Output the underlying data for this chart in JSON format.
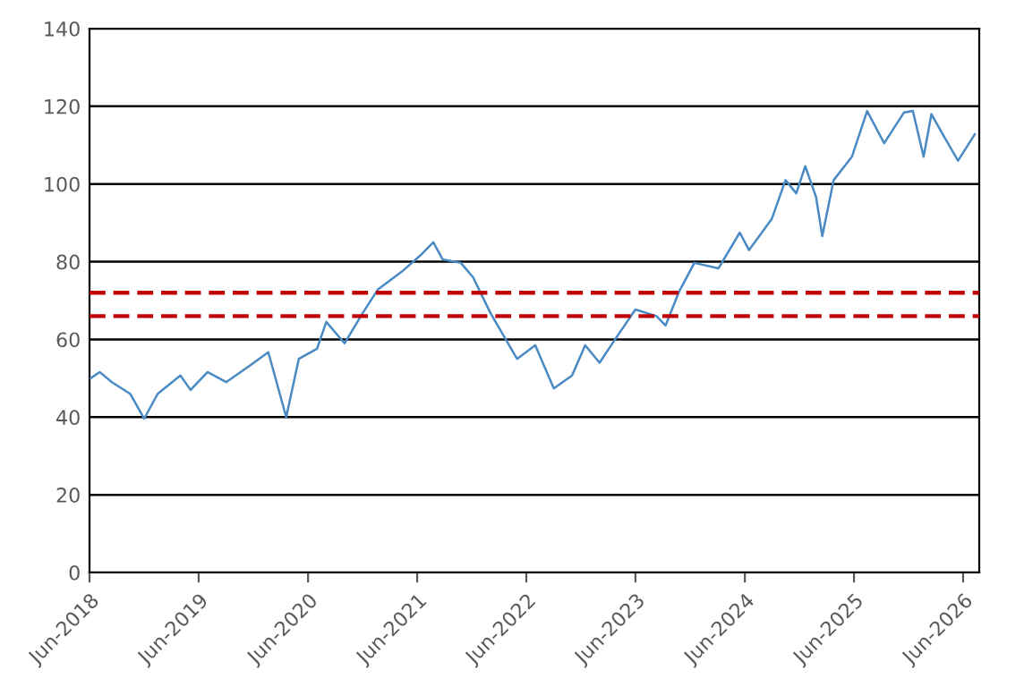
{
  "chart_data": {
    "type": "line",
    "x": [
      "2018-06-05",
      "2018-07-05",
      "2018-08-15",
      "2018-10-15",
      "2018-12-01",
      "2019-01-15",
      "2019-04-01",
      "2019-05-05",
      "2019-07-01",
      "2019-09-01",
      "2019-11-15",
      "2020-01-20",
      "2020-03-20",
      "2020-05-01",
      "2020-07-01",
      "2020-08-01",
      "2020-10-01",
      "2020-12-01",
      "2021-01-20",
      "2021-04-10",
      "2021-06-10",
      "2021-07-25",
      "2021-08-25",
      "2021-10-25",
      "2021-12-05",
      "2022-02-01",
      "2022-05-01",
      "2022-07-01",
      "2022-09-01",
      "2022-11-01",
      "2022-12-15",
      "2023-02-01",
      "2023-03-25",
      "2023-06-01",
      "2023-08-10",
      "2023-09-10",
      "2023-10-25",
      "2023-12-15",
      "2024-03-05",
      "2024-05-15",
      "2024-06-15",
      "2024-08-30",
      "2024-10-15",
      "2024-11-20",
      "2024-12-20",
      "2025-01-25",
      "2025-02-15",
      "2025-03-25",
      "2025-05-25",
      "2025-07-15",
      "2025-09-10",
      "2025-11-15",
      "2025-12-15",
      "2026-01-20",
      "2026-02-15",
      "2026-03-25",
      "2026-05-15",
      "2026-07-10"
    ],
    "series": [
      {
        "color": "#4a8ac4",
        "values": [
          50,
          51.6,
          49,
          46,
          39.6,
          46,
          50.7,
          47,
          51.6,
          49,
          53,
          56.7,
          40,
          55,
          57.6,
          64.5,
          59,
          66.8,
          72.8,
          77.4,
          81.5,
          85,
          80.6,
          79.7,
          76,
          66.8,
          55,
          58.5,
          47.4,
          50.7,
          58.5,
          54,
          60,
          67.7,
          66,
          63.6,
          72.3,
          79.7,
          78.3,
          87.5,
          83,
          91,
          101,
          97.6,
          104.6,
          96.7,
          86.6,
          101,
          107,
          118.8,
          110.5,
          118.4,
          118.8,
          107,
          118,
          112.8,
          106,
          112.8
        ]
      }
    ],
    "xlim": [
      "2018-06-01",
      "2026-07-25"
    ],
    "xticks": [
      {
        "value": "2018-06-01",
        "label": "Jun-2018"
      },
      {
        "value": "2019-06-01",
        "label": "Jun-2019"
      },
      {
        "value": "2020-06-01",
        "label": "Jun-2020"
      },
      {
        "value": "2021-06-01",
        "label": "Jun-2021"
      },
      {
        "value": "2022-06-01",
        "label": "Jun-2022"
      },
      {
        "value": "2023-06-01",
        "label": "Jun-2023"
      },
      {
        "value": "2024-06-01",
        "label": "Jun-2024"
      },
      {
        "value": "2025-06-01",
        "label": "Jun-2025"
      },
      {
        "value": "2026-06-01",
        "label": "Jun-2026"
      }
    ],
    "ylim": [
      0,
      140
    ],
    "yticks": [
      0,
      20,
      40,
      60,
      80,
      100,
      120,
      140
    ],
    "ref_lines": [
      {
        "axis": "y",
        "value": 72,
        "label": null,
        "color": "#c00000",
        "line_style": "dashed"
      },
      {
        "axis": "y",
        "value": 66,
        "label": null,
        "color": "#c00000",
        "line_style": "dashed"
      }
    ],
    "grid": "y",
    "legend": false,
    "marker": "none",
    "line_style": "solid"
  }
}
